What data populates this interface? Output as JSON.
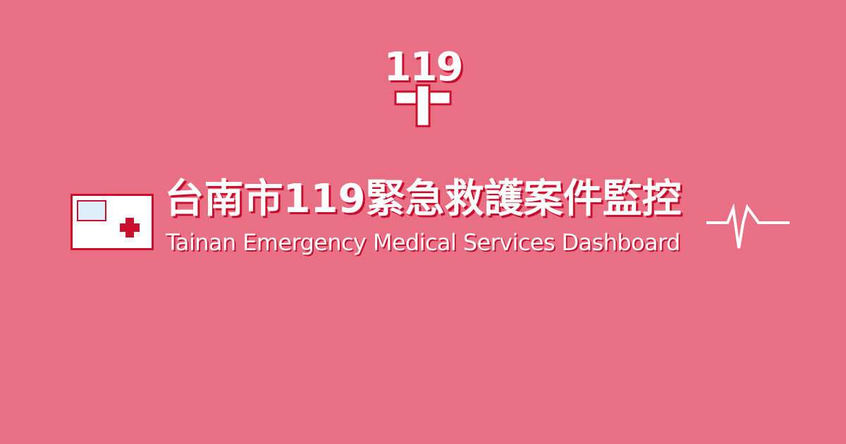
{
  "logo": {
    "text": "119",
    "cross_icon": "medical-cross-icon"
  },
  "title": {
    "main": "台南市119緊急救護案件監控",
    "sub": "Tainan Emergency Medical Services Dashboard"
  },
  "decorations": {
    "left_icon": "ambulance-icon",
    "right_icon": "heartbeat-icon"
  },
  "colors": {
    "background": "#e96f85",
    "accent_red": "#c8102e",
    "text": "#ffffff",
    "window_blue": "#dfeefb"
  }
}
